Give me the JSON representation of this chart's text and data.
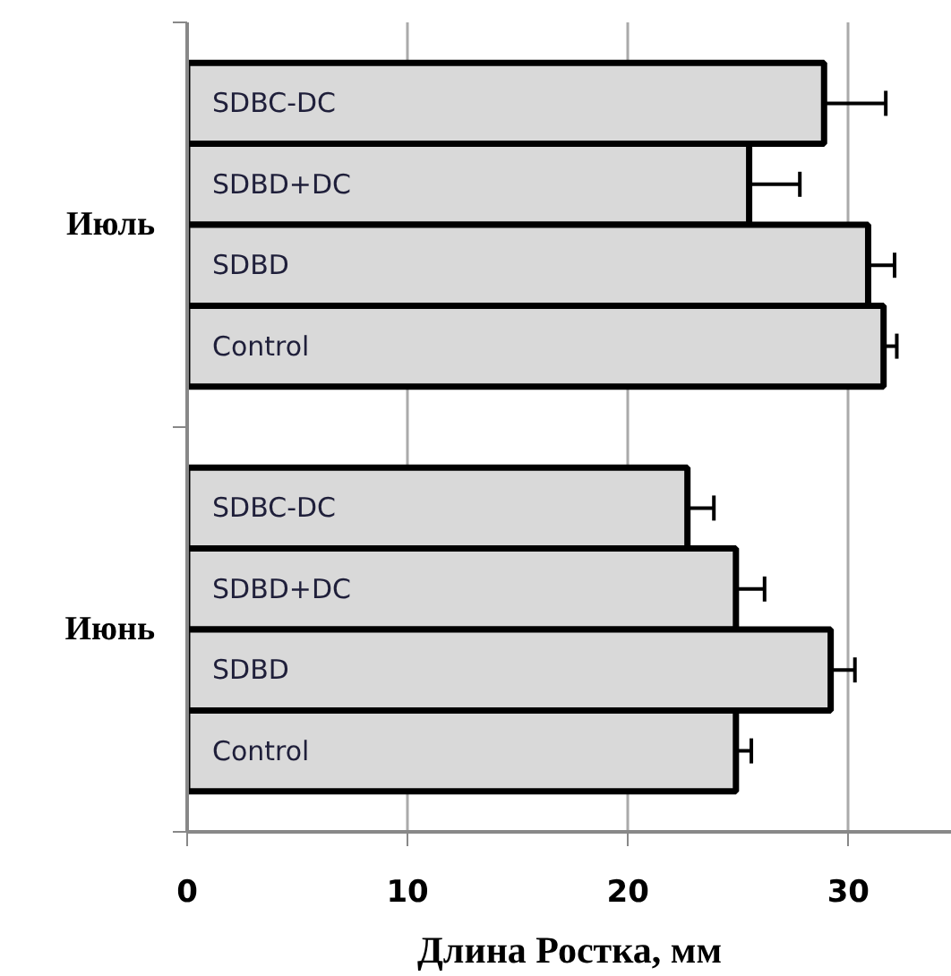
{
  "chart_data": {
    "type": "bar",
    "orientation": "horizontal",
    "categories": [
      "SDBC-DC",
      "SDBD+DC",
      "SDBD",
      "Control",
      "SDBC-DC",
      "SDBD+DC",
      "SDBD",
      "Control"
    ],
    "values": [
      28.9,
      25.5,
      30.9,
      31.6,
      22.7,
      24.9,
      29.2,
      24.9
    ],
    "errors": [
      2.8,
      2.3,
      1.2,
      0.6,
      1.2,
      1.3,
      1.1,
      0.7
    ],
    "color": "#d9d9d9",
    "xlim": [
      0,
      34.7
    ],
    "xticks": [
      0,
      10,
      20,
      30
    ],
    "xlabel": "Длина Ростка, мм",
    "annotations": [
      "Июль",
      "Июнь"
    ],
    "grid": "x"
  }
}
